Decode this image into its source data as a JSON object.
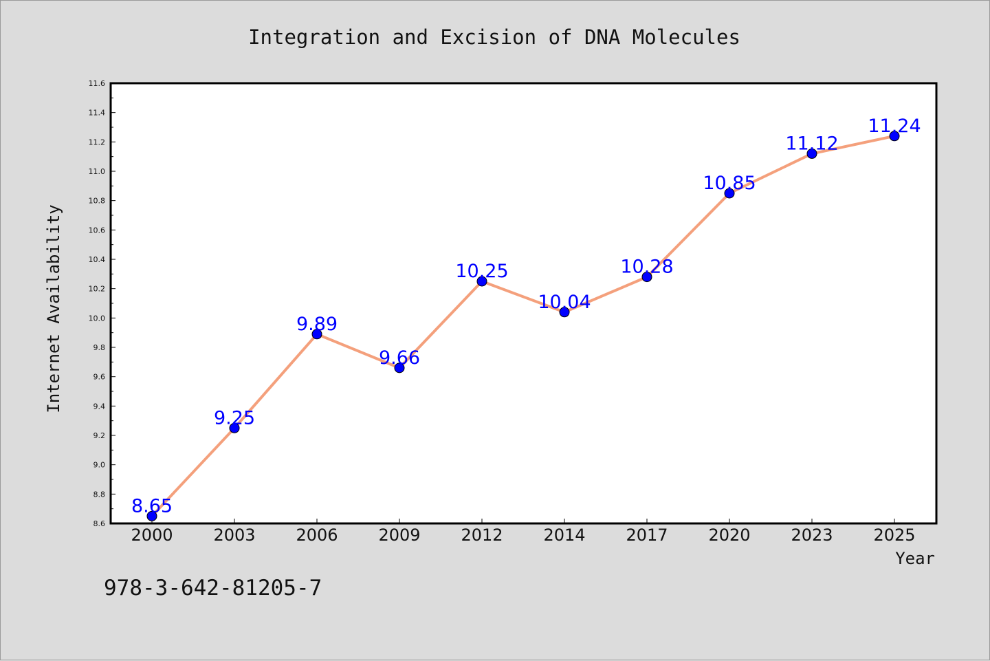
{
  "chart_data": {
    "type": "line",
    "title": "Integration and Excision of DNA Molecules",
    "xlabel": "Year",
    "ylabel": "Internet Availability",
    "categories": [
      "2000",
      "2003",
      "2006",
      "2009",
      "2012",
      "2014",
      "2017",
      "2020",
      "2023",
      "2025"
    ],
    "series": [
      {
        "values": [
          8.65,
          9.25,
          9.89,
          9.66,
          10.25,
          10.04,
          10.28,
          10.85,
          11.12,
          11.24
        ],
        "data_labels": [
          "8.65",
          "9.25",
          "9.89",
          "9.66",
          "10.25",
          "10.04",
          "10.28",
          "10.85",
          "11.12",
          "11.24"
        ],
        "line_color": "#f4a07c",
        "marker_color": "#0000ff"
      }
    ],
    "ylim": [
      8.6,
      11.6
    ],
    "yticks": [
      "8.6",
      "8.8",
      "9.0",
      "9.2",
      "9.4",
      "9.6",
      "9.8",
      "10.0",
      "10.2",
      "10.4",
      "10.6",
      "10.8",
      "11.0",
      "11.2",
      "11.4",
      "11.6"
    ],
    "grid": false,
    "legend": "none"
  },
  "footnote": "978-3-642-81205-7",
  "colors": {
    "background": "#dcdcdc",
    "plot_background": "#ffffff",
    "label_color": "#0000ff"
  }
}
